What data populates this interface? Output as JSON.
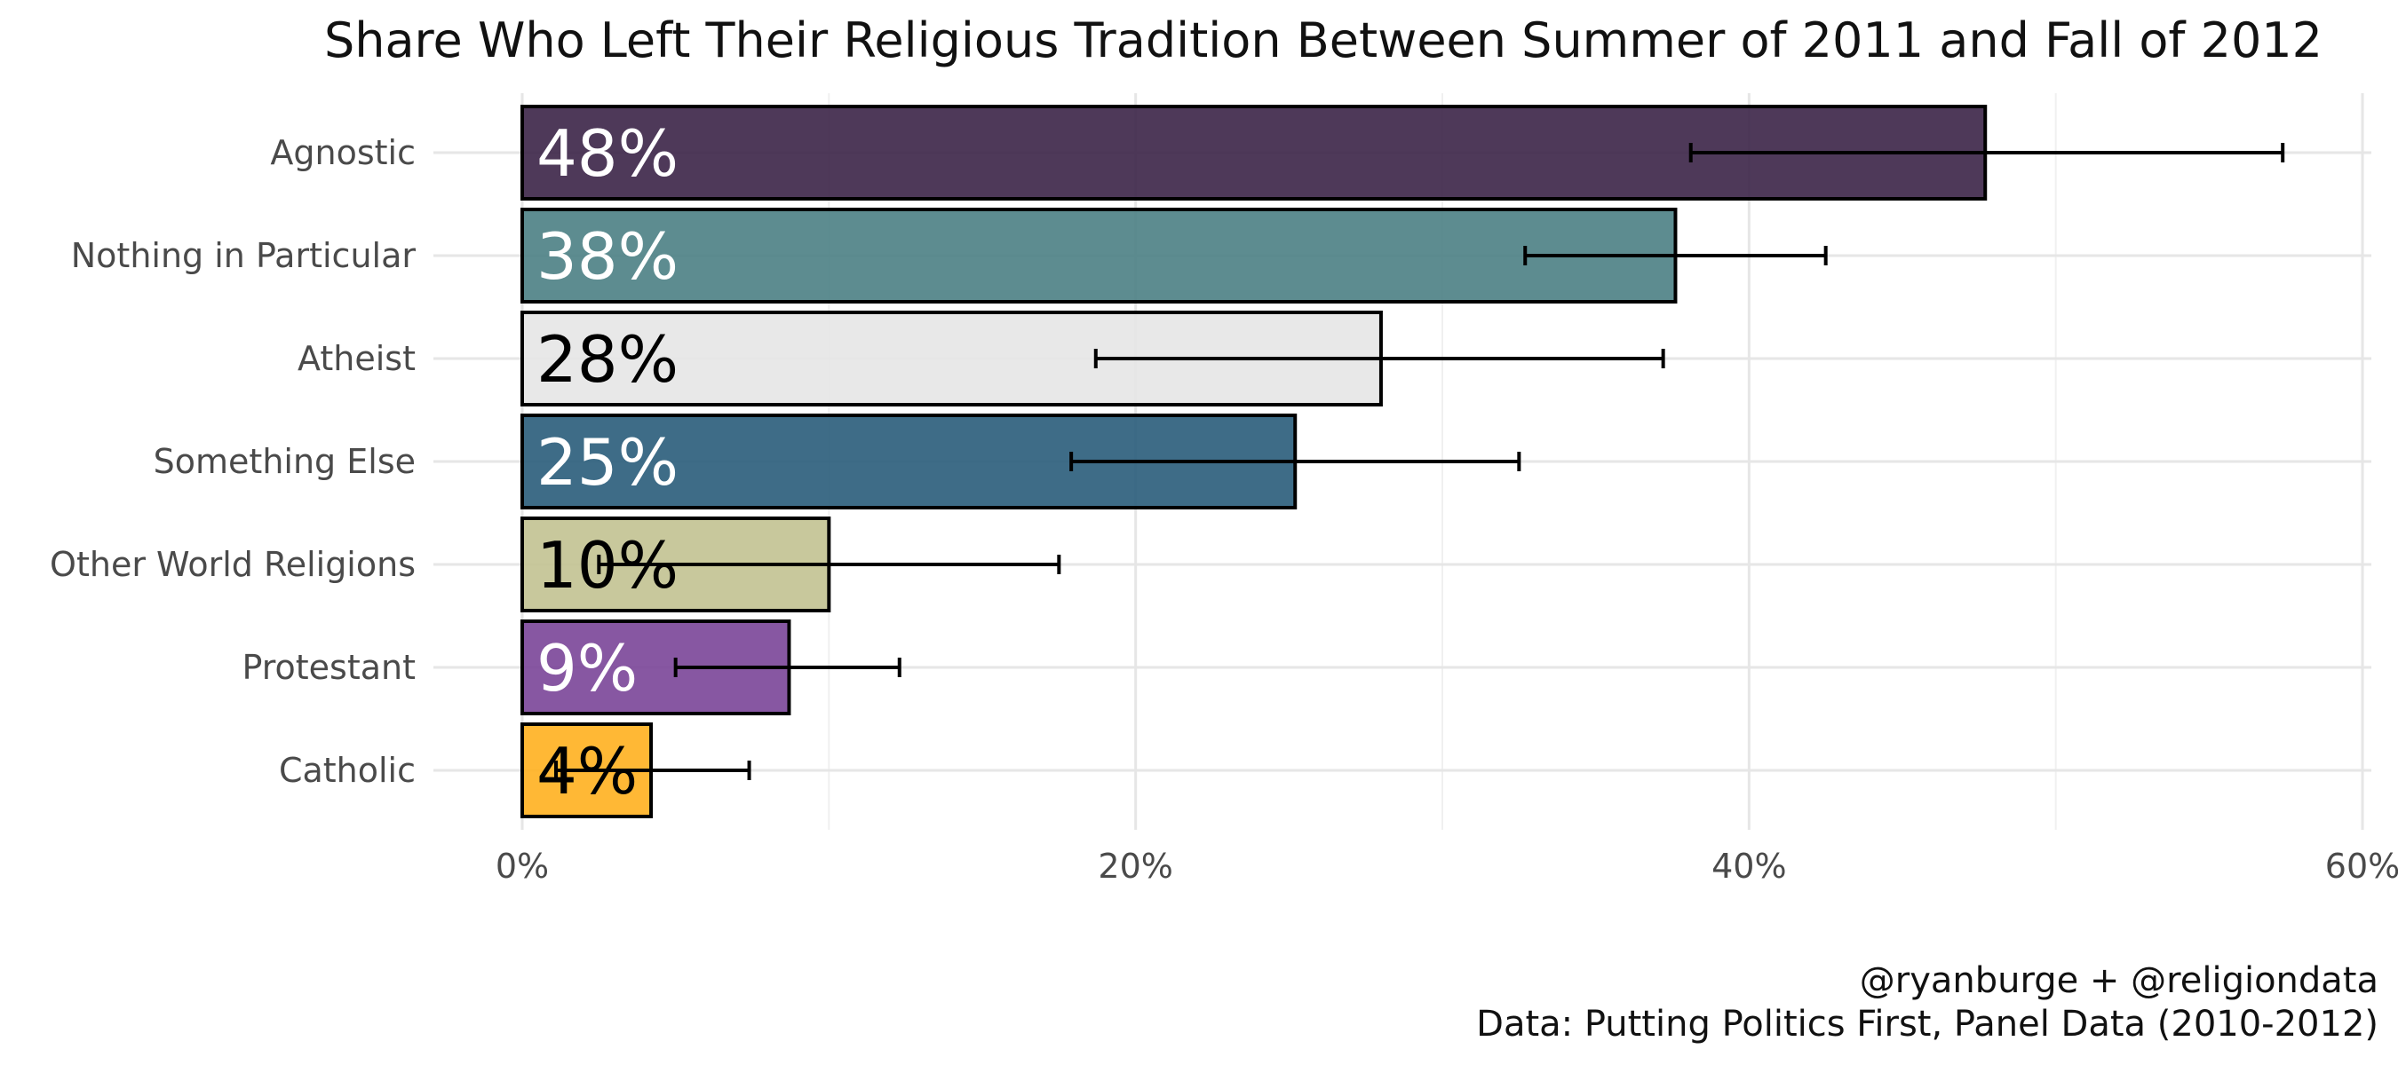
{
  "chart_data": {
    "type": "bar",
    "orientation": "horizontal",
    "title": "Share Who Left Their Religious Tradition Between Summer of 2011 and Fall of 2012",
    "xlabel": "",
    "ylabel": "",
    "xlim": [
      0,
      0.6
    ],
    "x_ticks": [
      {
        "value": 0,
        "label": "0%"
      },
      {
        "value": 0.2,
        "label": "20%"
      },
      {
        "value": 0.4,
        "label": "40%"
      },
      {
        "value": 0.6,
        "label": "60%"
      }
    ],
    "grid": true,
    "legend": "none",
    "bars": [
      {
        "category": "Agnostic",
        "value": 0.477,
        "label": "48%",
        "ci_low": 0.381,
        "ci_high": 0.574,
        "color": "#3b2447",
        "label_color": "#ffffff"
      },
      {
        "category": "Nothing in Particular",
        "value": 0.376,
        "label": "38%",
        "ci_low": 0.327,
        "ci_high": 0.425,
        "color": "#4b7f84",
        "label_color": "#ffffff"
      },
      {
        "category": "Atheist",
        "value": 0.28,
        "label": "28%",
        "ci_low": 0.187,
        "ci_high": 0.372,
        "color": "#e5e5e5",
        "label_color": "#000000"
      },
      {
        "category": "Something Else",
        "value": 0.252,
        "label": "25%",
        "ci_low": 0.179,
        "ci_high": 0.325,
        "color": "#295c7a",
        "label_color": "#ffffff"
      },
      {
        "category": "Other World Religions",
        "value": 0.1,
        "label": "10%",
        "ci_low": 0.025,
        "ci_high": 0.175,
        "color": "#c2c291",
        "label_color": "#000000"
      },
      {
        "category": "Protestant",
        "value": 0.087,
        "label": "9%",
        "ci_low": 0.05,
        "ci_high": 0.123,
        "color": "#7a4598",
        "label_color": "#ffffff"
      },
      {
        "category": "Catholic",
        "value": 0.042,
        "label": "4%",
        "ci_low": 0.011,
        "ci_high": 0.074,
        "color": "#ffb01f",
        "label_color": "#000000"
      }
    ],
    "caption_lines": [
      "@ryanburge + @religiondata",
      "Data: Putting Politics First, Panel Data (2010-2012)"
    ]
  }
}
